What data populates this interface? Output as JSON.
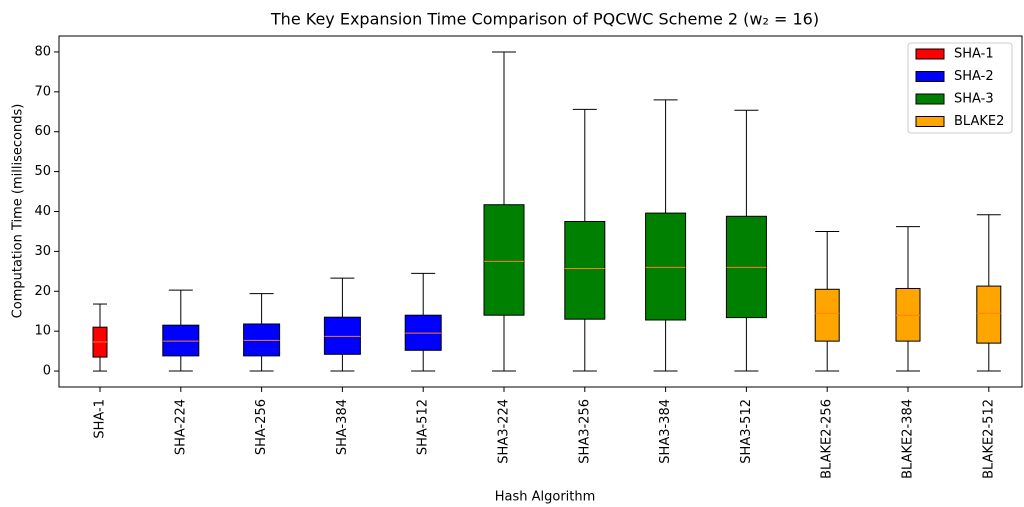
{
  "chart_data": {
    "type": "box",
    "title": "The Key Expansion Time Comparison of PQCWC Scheme 2 (w₂ = 16)",
    "x_label": "Hash Algorithm",
    "y_label": "Computation Time (milliseconds)",
    "ylim": [
      -4,
      84
    ],
    "yticks": [
      0,
      10,
      20,
      30,
      40,
      50,
      60,
      70,
      80
    ],
    "median_color": "#ff7f0e",
    "legend": "upper right",
    "series": [
      {
        "name": "SHA-1",
        "color": "#ff0000",
        "boxes": [
          {
            "label": "SHA-1",
            "whislo": 0,
            "q1": 3.5,
            "median": 7.3,
            "q3": 11,
            "whishi": 16.8
          }
        ]
      },
      {
        "name": "SHA-2",
        "color": "#0000ff",
        "boxes": [
          {
            "label": "SHA-224",
            "whislo": 0,
            "q1": 3.8,
            "median": 7.5,
            "q3": 11.5,
            "whishi": 20.3
          },
          {
            "label": "SHA-256",
            "whislo": 0,
            "q1": 3.8,
            "median": 7.7,
            "q3": 11.8,
            "whishi": 19.4
          },
          {
            "label": "SHA-384",
            "whislo": 0,
            "q1": 4.2,
            "median": 8.7,
            "q3": 13.5,
            "whishi": 23.3
          },
          {
            "label": "SHA-512",
            "whislo": 0,
            "q1": 5.2,
            "median": 9.5,
            "q3": 14,
            "whishi": 24.5
          }
        ]
      },
      {
        "name": "SHA-3",
        "color": "#008000",
        "boxes": [
          {
            "label": "SHA3-224",
            "whislo": 0,
            "q1": 14,
            "median": 27.5,
            "q3": 41.7,
            "whishi": 80
          },
          {
            "label": "SHA3-256",
            "whislo": 0,
            "q1": 13,
            "median": 25.7,
            "q3": 37.5,
            "whishi": 65.6
          },
          {
            "label": "SHA3-384",
            "whislo": 0,
            "q1": 12.8,
            "median": 26,
            "q3": 39.6,
            "whishi": 68
          },
          {
            "label": "SHA3-512",
            "whislo": 0,
            "q1": 13.4,
            "median": 26,
            "q3": 38.8,
            "whishi": 65.4
          }
        ]
      },
      {
        "name": "BLAKE2",
        "color": "#ffa500",
        "boxes": [
          {
            "label": "BLAKE2-256",
            "whislo": 0,
            "q1": 7.5,
            "median": 14.5,
            "q3": 20.5,
            "whishi": 35
          },
          {
            "label": "BLAKE2-384",
            "whislo": 0,
            "q1": 7.5,
            "median": 14,
            "q3": 20.7,
            "whishi": 36.2
          },
          {
            "label": "BLAKE2-512",
            "whislo": 0,
            "q1": 7,
            "median": 14.5,
            "q3": 21.3,
            "whishi": 39.2
          }
        ]
      }
    ]
  }
}
